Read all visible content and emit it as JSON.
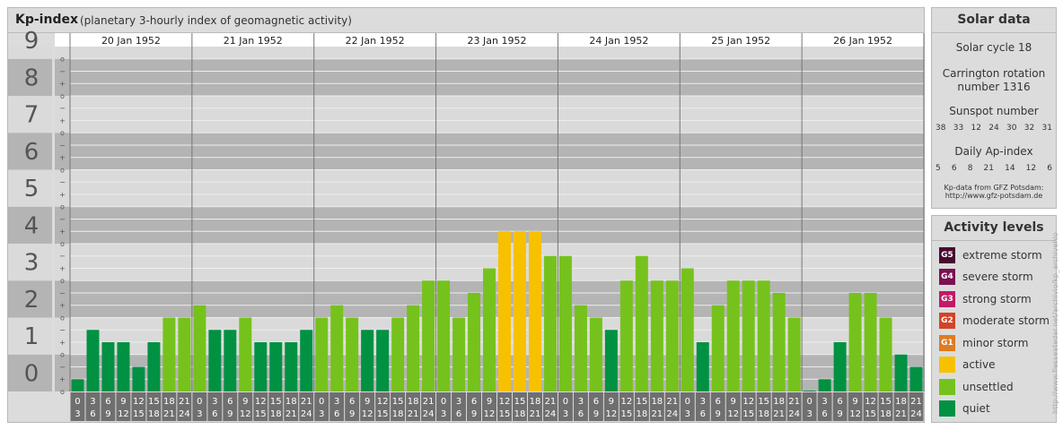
{
  "header": {
    "title": "Kp-index",
    "subtitle": "(planetary 3-hourly index of geomagnetic activity)"
  },
  "chart_data": {
    "type": "bar",
    "days": [
      "20 Jan 1952",
      "21 Jan 1952",
      "22 Jan 1952",
      "23 Jan 1952",
      "24 Jan 1952",
      "25 Jan 1952",
      "26 Jan 1952"
    ],
    "interval_start_hours": [
      "0",
      "3",
      "6",
      "9",
      "12",
      "15",
      "18",
      "21"
    ],
    "interval_end_hours": [
      "3",
      "6",
      "9",
      "12",
      "15",
      "18",
      "21",
      "24"
    ],
    "y_major_labels": [
      "0",
      "1",
      "2",
      "3",
      "4",
      "5",
      "6",
      "7",
      "8",
      "9"
    ],
    "y_minor_labels": [
      "o",
      "+",
      "−",
      "o"
    ],
    "ylim": [
      0,
      9.333
    ],
    "values": [
      0.333,
      1.667,
      1.333,
      1.333,
      0.667,
      1.333,
      2.0,
      2.0,
      2.333,
      1.667,
      1.667,
      2.0,
      1.333,
      1.333,
      1.333,
      1.667,
      2.0,
      2.333,
      2.0,
      1.667,
      1.667,
      2.0,
      2.333,
      3.0,
      3.0,
      2.0,
      2.667,
      3.333,
      4.333,
      4.333,
      4.333,
      3.667,
      3.667,
      2.333,
      2.0,
      1.667,
      3.0,
      3.667,
      3.0,
      3.0,
      3.333,
      1.333,
      2.333,
      3.0,
      3.0,
      3.0,
      2.667,
      2.0,
      0.0,
      0.333,
      1.333,
      2.667,
      2.667,
      2.0,
      1.0,
      0.667
    ],
    "level_colors": {
      "quiet": "#009142",
      "unsettled": "#76c21c",
      "active": "#f7c100",
      "minor_storm": "#e07b20",
      "moderate_storm": "#d24427",
      "strong_storm": "#c11a66",
      "severe_storm": "#7a1151",
      "extreme_storm": "#4a0a2f"
    },
    "band_colors": [
      "#b4b4b4",
      "#dadada"
    ]
  },
  "solar": {
    "heading": "Solar data",
    "cycle": "Solar cycle 18",
    "carrington_line1": "Carrington rotation",
    "carrington_line2": "number 1316",
    "sunspot_heading": "Sunspot number",
    "sunspot_values": [
      "38",
      "33",
      "12",
      "24",
      "30",
      "32",
      "31"
    ],
    "ap_heading": "Daily Ap-index",
    "ap_values": [
      "5",
      "6",
      "8",
      "21",
      "14",
      "12",
      "6"
    ],
    "credit_line1": "Kp-data from GFZ Potsdam:",
    "credit_line2": "http://www.gfz-potsdam.de"
  },
  "activity": {
    "heading": "Activity levels",
    "levels": [
      {
        "code": "G5",
        "label": "extreme storm",
        "color": "#4a0a2f"
      },
      {
        "code": "G4",
        "label": "severe storm",
        "color": "#7a1151"
      },
      {
        "code": "G3",
        "label": "strong storm",
        "color": "#c11a66"
      },
      {
        "code": "G2",
        "label": "moderate storm",
        "color": "#d24427"
      },
      {
        "code": "G1",
        "label": "minor storm",
        "color": "#e07b20"
      },
      {
        "code": "",
        "label": "active",
        "color": "#f7c100"
      },
      {
        "code": "",
        "label": "unsettled",
        "color": "#76c21c"
      },
      {
        "code": "",
        "label": "quiet",
        "color": "#009142"
      }
    ]
  },
  "side_url": "http://www.fiesseatedar.net/archivio/kp_archivehio"
}
